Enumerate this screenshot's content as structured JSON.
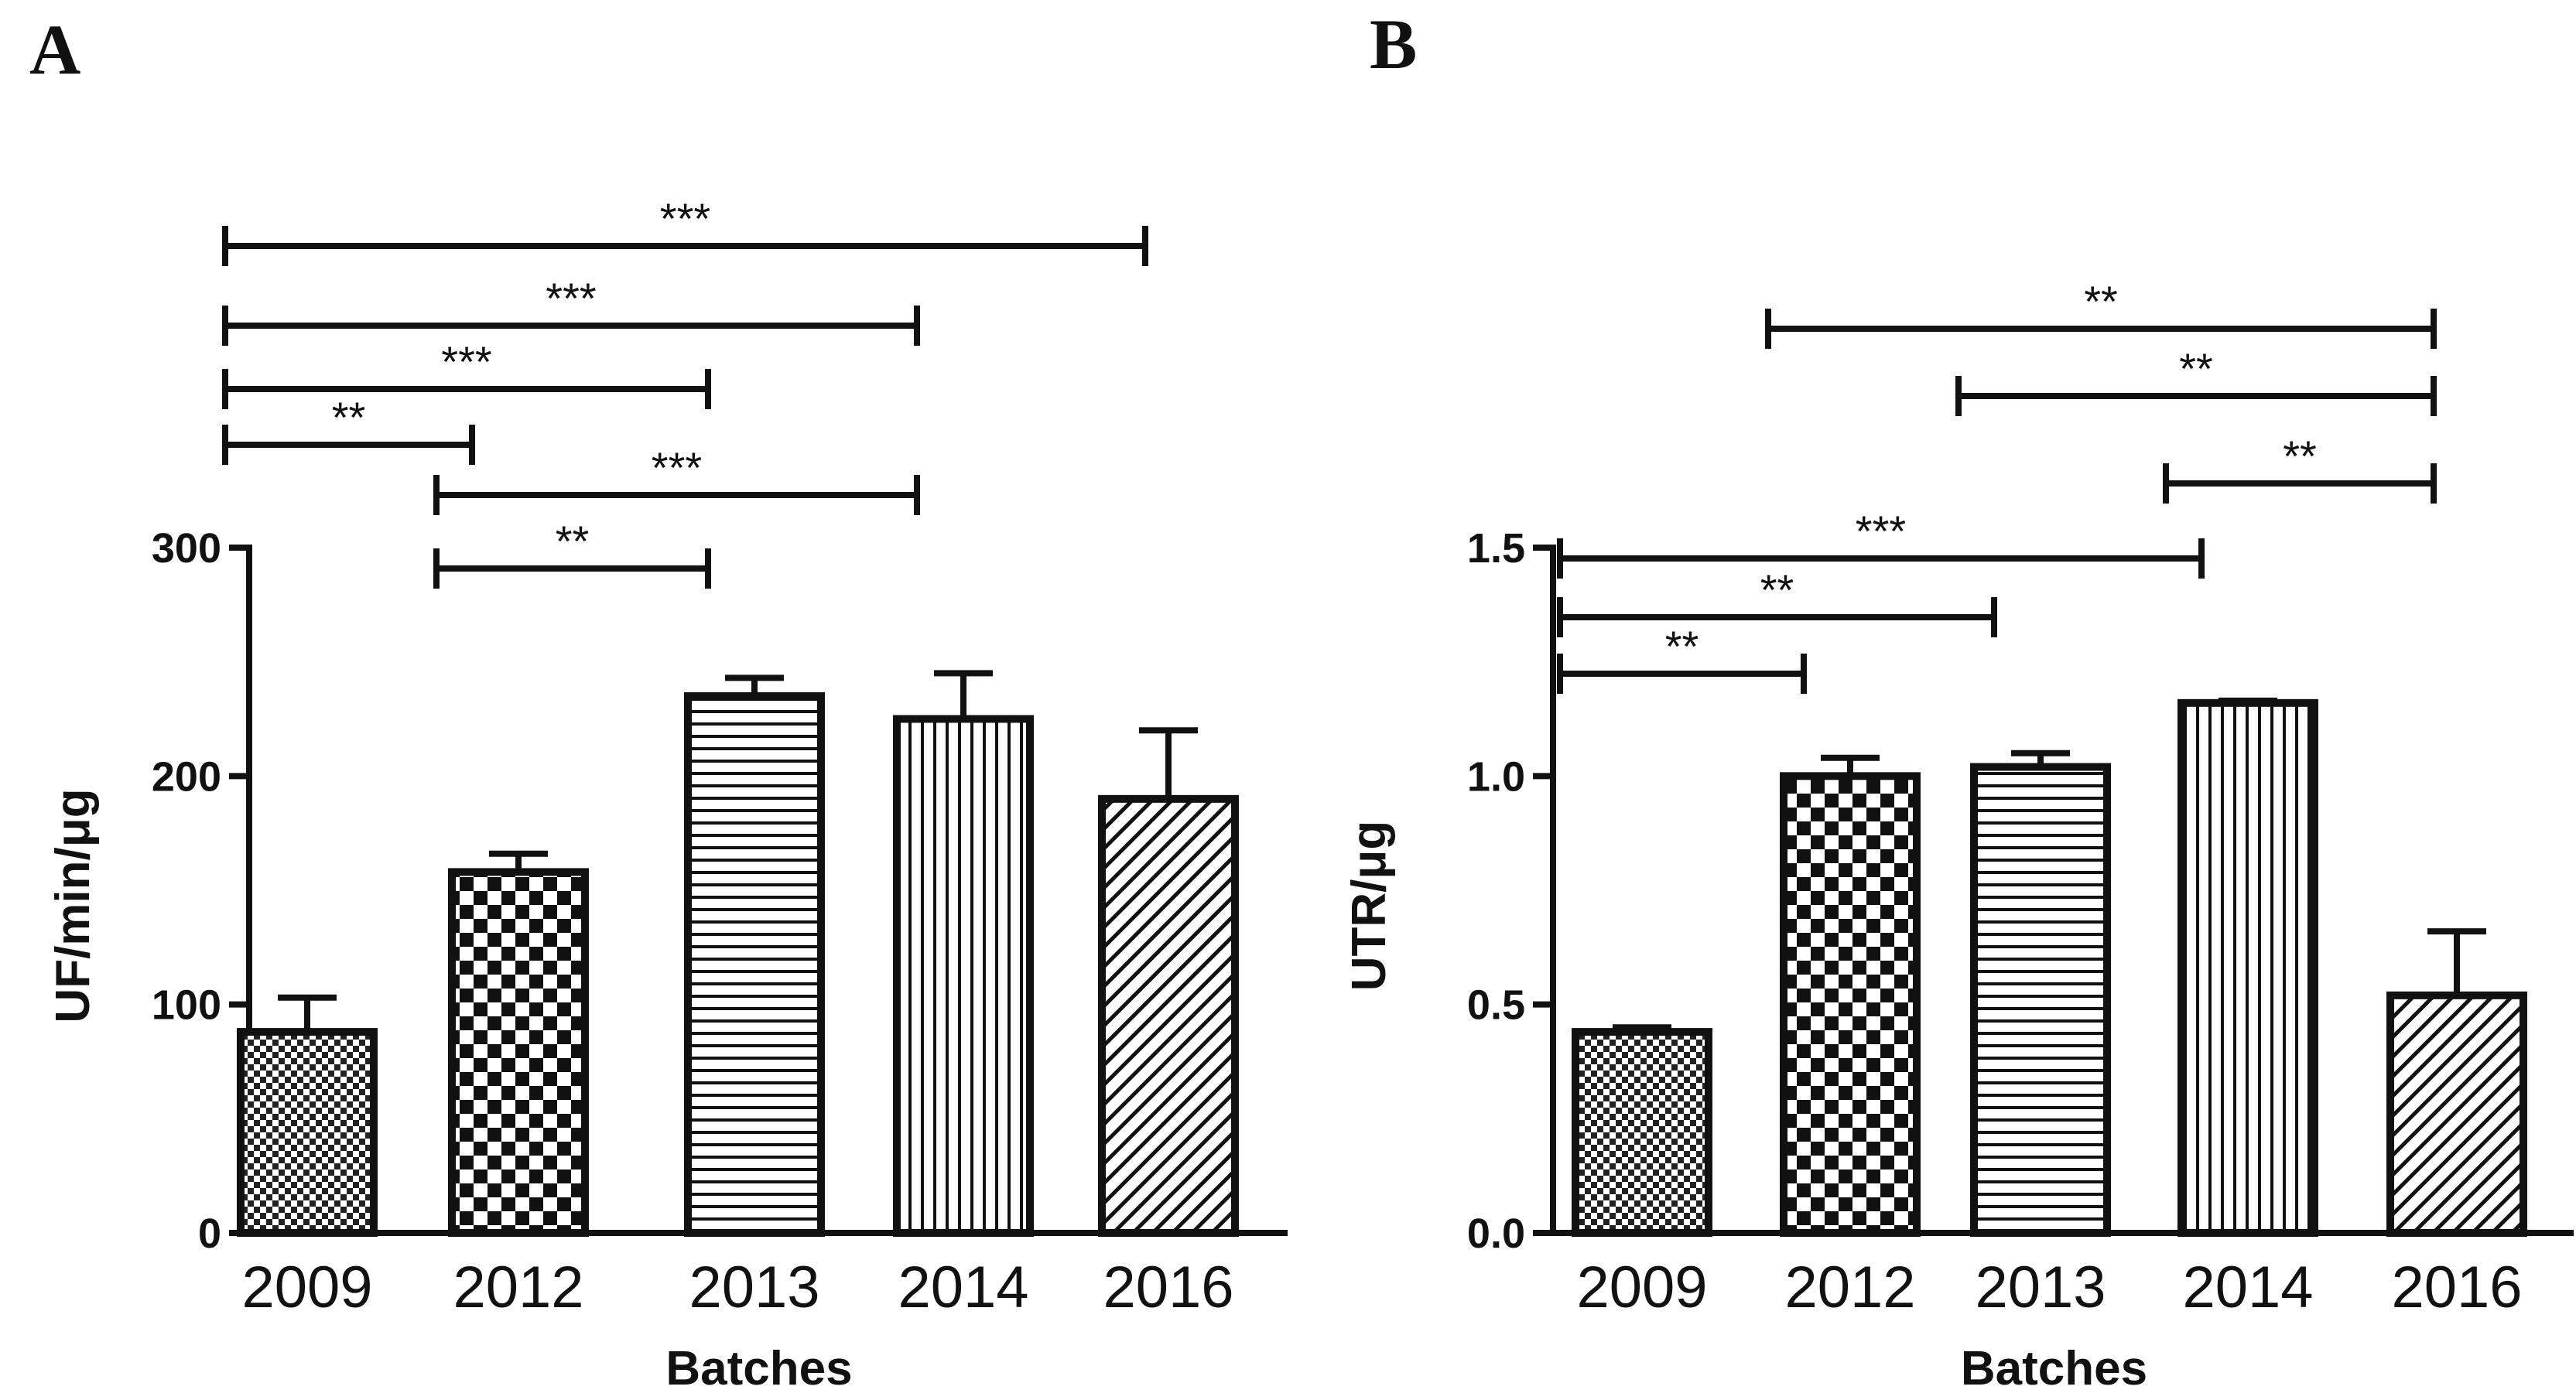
{
  "chart_data": [
    {
      "type": "bar",
      "panel": "A",
      "categories": [
        "2009",
        "2012",
        "2013",
        "2014",
        "2016"
      ],
      "values": [
        88,
        158,
        235,
        225,
        190
      ],
      "errors": [
        15,
        8,
        8,
        20,
        30
      ],
      "patterns": [
        "dense-check",
        "checker",
        "hlines",
        "vlines",
        "diag"
      ],
      "xlabel": "Batches",
      "ylabel": "UF/min/μg",
      "ylim": [
        0,
        300
      ],
      "yticks": [
        0,
        100,
        200,
        300
      ],
      "ytick_labels": [
        "0",
        "100",
        "200",
        "300"
      ],
      "significance": [
        {
          "from": "2009",
          "to": "2016",
          "label": "***"
        },
        {
          "from": "2009",
          "to": "2014",
          "label": "***"
        },
        {
          "from": "2009",
          "to": "2013",
          "label": "***"
        },
        {
          "from": "2009",
          "to": "2012",
          "label": "**"
        },
        {
          "from": "2012",
          "to": "2014",
          "label": "***"
        },
        {
          "from": "2012",
          "to": "2013",
          "label": "**"
        }
      ]
    },
    {
      "type": "bar",
      "panel": "B",
      "categories": [
        "2009",
        "2012",
        "2013",
        "2014",
        "2016"
      ],
      "values": [
        0.44,
        1.0,
        1.02,
        1.16,
        0.52
      ],
      "errors": [
        0.01,
        0.04,
        0.03,
        0.005,
        0.14
      ],
      "patterns": [
        "dense-check",
        "checker",
        "hlines",
        "vlines",
        "diag"
      ],
      "xlabel": "Batches",
      "ylabel": "UTR/μg",
      "ylim": [
        0,
        1.5
      ],
      "yticks": [
        0,
        0.5,
        1.0,
        1.5
      ],
      "ytick_labels": [
        "0.0",
        "0.5",
        "1.0",
        "1.5"
      ],
      "significance": [
        {
          "from": "2012",
          "to": "2016",
          "label": "**"
        },
        {
          "from": "2013",
          "to": "2016",
          "label": "**"
        },
        {
          "from": "2014",
          "to": "2016",
          "label": "**"
        },
        {
          "from": "2009",
          "to": "2014",
          "label": "***"
        },
        {
          "from": "2009",
          "to": "2013",
          "label": "**"
        },
        {
          "from": "2009",
          "to": "2012",
          "label": "**"
        }
      ]
    }
  ]
}
